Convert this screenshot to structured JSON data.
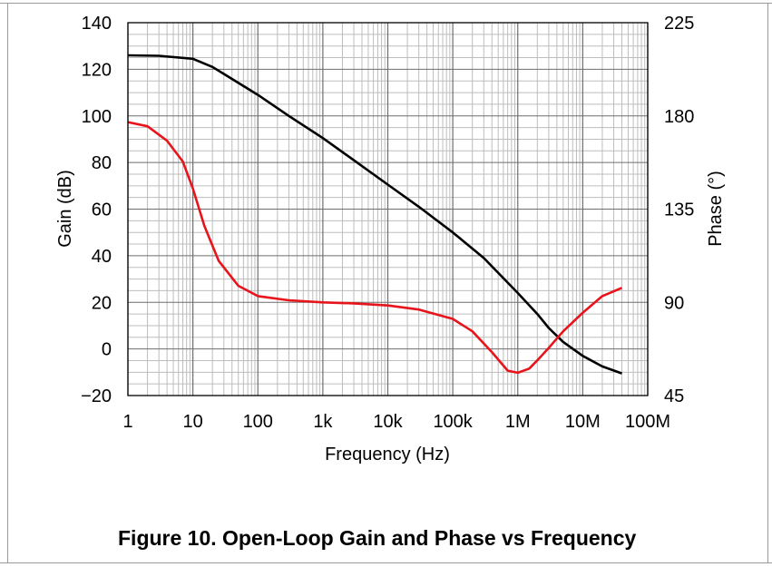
{
  "caption": "Figure 10. Open-Loop Gain and Phase vs Frequency",
  "colors": {
    "gain": "#000000",
    "phase": "#e8141c",
    "grid_major": "#6e6e6e",
    "grid_minor": "#bdbdbd"
  },
  "chart_data": {
    "type": "line",
    "title": "",
    "xlabel": "Frequency (Hz)",
    "ylabel": "Gain (dB)",
    "y2label": "Phase (°)",
    "xscale": "log",
    "xlim": [
      1,
      100000000
    ],
    "ylim": [
      -20,
      140
    ],
    "y2lim": [
      45,
      225
    ],
    "grid": true,
    "x_ticks": [
      {
        "value": 1,
        "label": "1"
      },
      {
        "value": 10,
        "label": "10"
      },
      {
        "value": 100,
        "label": "100"
      },
      {
        "value": 1000,
        "label": "1k"
      },
      {
        "value": 10000,
        "label": "10k"
      },
      {
        "value": 100000,
        "label": "100k"
      },
      {
        "value": 1000000,
        "label": "1M"
      },
      {
        "value": 10000000,
        "label": "10M"
      },
      {
        "value": 100000000,
        "label": "100M"
      }
    ],
    "y_ticks": [
      {
        "value": 140,
        "label": "140"
      },
      {
        "value": 120,
        "label": "120"
      },
      {
        "value": 100,
        "label": "100"
      },
      {
        "value": 80,
        "label": "80"
      },
      {
        "value": 60,
        "label": "60"
      },
      {
        "value": 40,
        "label": "40"
      },
      {
        "value": 20,
        "label": "20"
      },
      {
        "value": 0,
        "label": "0"
      },
      {
        "value": -20,
        "label": "−20"
      }
    ],
    "y2_ticks": [
      {
        "value": 225,
        "label": "225"
      },
      {
        "value": 180,
        "label": "180"
      },
      {
        "value": 135,
        "label": "135"
      },
      {
        "value": 90,
        "label": "90"
      },
      {
        "value": 45,
        "label": "45"
      }
    ],
    "series": [
      {
        "axis": "left",
        "color": "#000000",
        "points": [
          [
            1,
            126
          ],
          [
            3,
            125.8
          ],
          [
            10,
            124.5
          ],
          [
            20,
            121
          ],
          [
            30,
            118
          ],
          [
            100,
            109
          ],
          [
            300,
            100
          ],
          [
            1000,
            90.5
          ],
          [
            3000,
            81
          ],
          [
            10000,
            70.5
          ],
          [
            30000,
            61
          ],
          [
            100000,
            50
          ],
          [
            300000,
            39
          ],
          [
            1000000,
            24
          ],
          [
            2000000,
            15
          ],
          [
            3000000,
            9
          ],
          [
            5000000,
            3
          ],
          [
            10000000,
            -3
          ],
          [
            20000000,
            -7.5
          ],
          [
            40000000,
            -10.5
          ]
        ]
      },
      {
        "axis": "right",
        "color": "#e8141c",
        "points": [
          [
            1,
            177
          ],
          [
            2,
            175
          ],
          [
            4,
            168
          ],
          [
            7,
            158
          ],
          [
            10,
            145
          ],
          [
            15,
            127
          ],
          [
            25,
            110
          ],
          [
            50,
            98
          ],
          [
            100,
            93
          ],
          [
            300,
            91
          ],
          [
            1000,
            90
          ],
          [
            3000,
            89.5
          ],
          [
            10000,
            88.5
          ],
          [
            30000,
            86.5
          ],
          [
            100000,
            82
          ],
          [
            200000,
            76
          ],
          [
            400000,
            66
          ],
          [
            700000,
            57
          ],
          [
            1000000,
            56
          ],
          [
            1500000,
            58
          ],
          [
            2000000,
            62
          ],
          [
            3000000,
            68
          ],
          [
            5000000,
            76
          ],
          [
            10000000,
            85
          ],
          [
            20000000,
            93
          ],
          [
            40000000,
            97
          ]
        ]
      }
    ]
  }
}
